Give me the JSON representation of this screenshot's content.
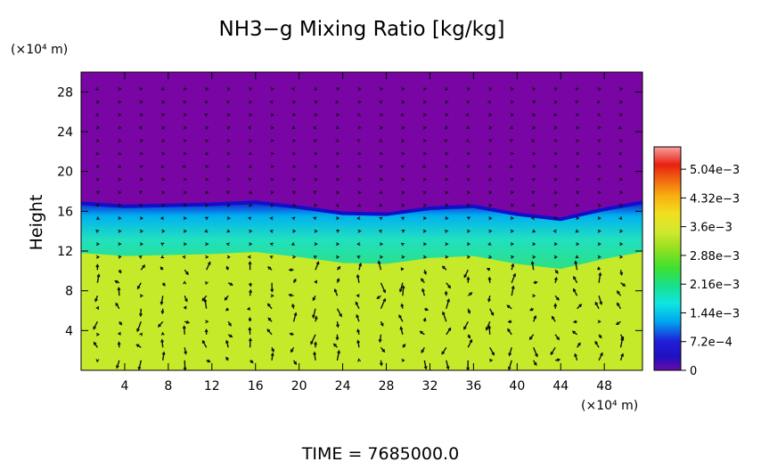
{
  "chart_data": {
    "type": "heatmap",
    "title": "NH3−g Mixing Ratio [kg/kg]",
    "ylabel": "Height",
    "x_unit": "(×10⁴ m)",
    "y_unit": "(×10⁴ m)",
    "footer": "TIME  =  7685000.0",
    "xlim": [
      0,
      51.5
    ],
    "ylim": [
      0,
      30
    ],
    "x_ticks": [
      "4",
      "8",
      "12",
      "16",
      "20",
      "24",
      "28",
      "32",
      "36",
      "40",
      "44",
      "48"
    ],
    "y_ticks": [
      "4",
      "8",
      "12",
      "16",
      "20",
      "24",
      "28"
    ],
    "colorbar": {
      "range": [
        0,
        0.0056
      ],
      "tick_labels": [
        "5.04e−3",
        "4.32e−3",
        "3.6e−3",
        "2.88e−3",
        "2.16e−3",
        "1.44e−3",
        "7.2e−4",
        "0"
      ],
      "tick_values": [
        0.00504,
        0.00432,
        0.0036,
        0.00288,
        0.00216,
        0.00144,
        0.00072,
        0
      ],
      "colors": [
        "#6a0aa8",
        "#1f1fd8",
        "#00a8f0",
        "#10e6e0",
        "#18e08a",
        "#40e030",
        "#9ae020",
        "#d0e830",
        "#f0e020",
        "#f8b010",
        "#f06010",
        "#e82010",
        "#f07070",
        "#f8a0a0"
      ]
    },
    "field_summary": {
      "upper_layer_value": 0,
      "upper_layer_color": "#7a05a5",
      "lower_layer_value": 0.0033,
      "lower_layer_color": "#c5ea2a",
      "transition_height_profile": {
        "x": [
          0,
          4,
          8,
          12,
          16,
          20,
          24,
          28,
          32,
          36,
          40,
          44,
          48,
          51.5
        ],
        "y": [
          16.8,
          16.5,
          16.6,
          16.7,
          16.9,
          16.4,
          15.8,
          15.7,
          16.3,
          16.5,
          15.7,
          15.2,
          16.2,
          16.9
        ]
      }
    },
    "vector_field": "wind arrows overlay"
  }
}
